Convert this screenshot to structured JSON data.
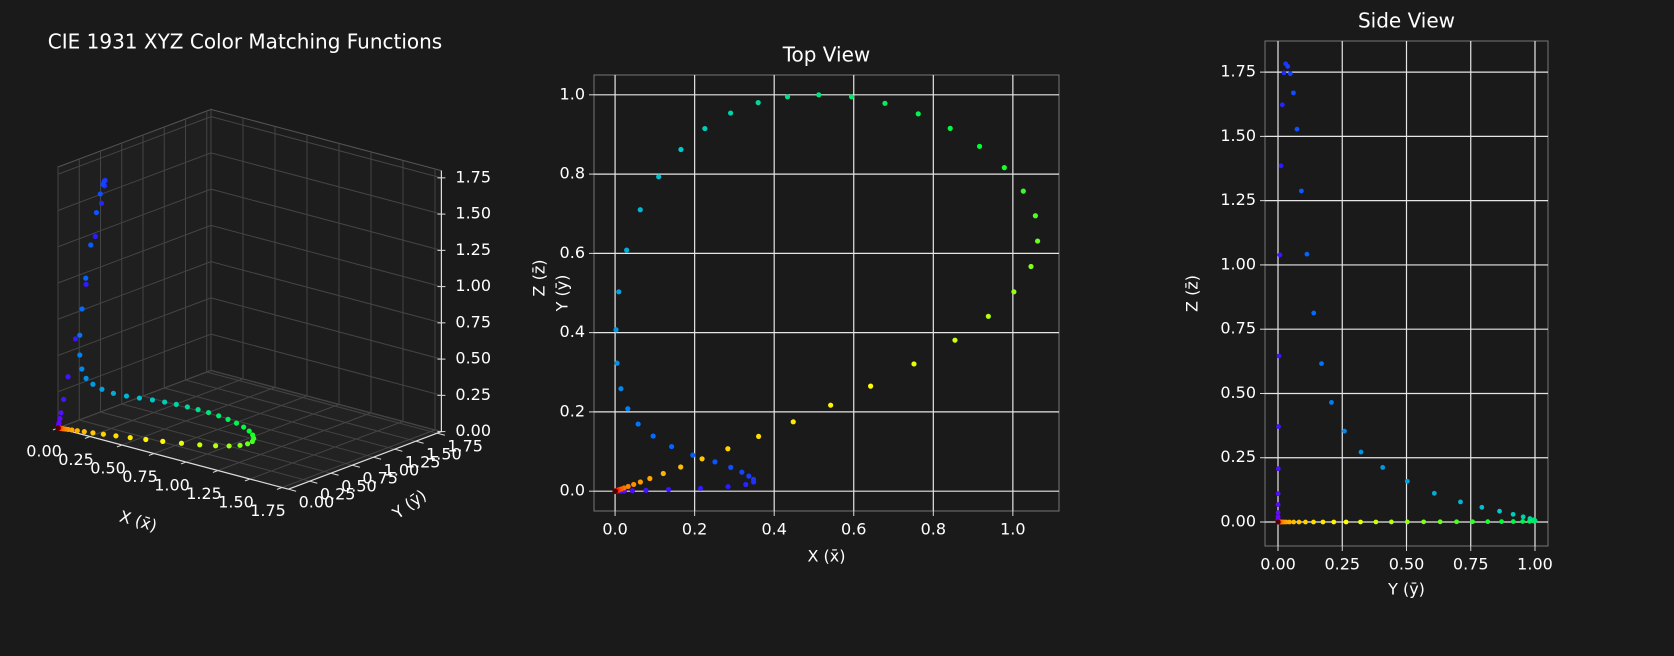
{
  "chart_data": [
    {
      "type": "scatter3d",
      "title": "CIE 1931 XYZ Color Matching Functions",
      "xlabel": "X (x̄)",
      "ylabel": "Y (ȳ)",
      "zlabel": "Z (z̄)",
      "xlim": [
        0,
        1.8
      ],
      "ylim": [
        0,
        1.8
      ],
      "zlim": [
        0,
        1.8
      ],
      "xticks": [
        {
          "value": 0,
          "label": "0.00"
        },
        0.25,
        {
          "value": 0.5,
          "label": "0.50"
        },
        0.75,
        {
          "value": 1,
          "label": "1.00"
        },
        1.25,
        {
          "value": 1.5,
          "label": "1.50"
        },
        1.75
      ],
      "yticks": [
        {
          "value": 0,
          "label": "0.00"
        },
        0.25,
        {
          "value": 0.5,
          "label": "0.50"
        },
        0.75,
        {
          "value": 1,
          "label": "1.00"
        },
        1.25,
        {
          "value": 1.5,
          "label": "1.50"
        },
        1.75
      ],
      "zticks": [
        {
          "value": 0,
          "label": "0.00"
        },
        0.25,
        {
          "value": 0.5,
          "label": "0.50"
        },
        0.75,
        {
          "value": 1,
          "label": "1.00"
        },
        1.25,
        {
          "value": 1.5,
          "label": "1.50"
        },
        1.75
      ],
      "colormap": [
        "#7a00ff",
        "#2a1cff",
        "#006cff",
        "#00c8c8",
        "#00ff30",
        "#ffff00",
        "#ff9000",
        "#ff0000",
        "#500000"
      ],
      "x": [
        0.001368,
        0.002236,
        0.004243,
        0.00765,
        0.01431,
        0.02319,
        0.04351,
        0.07763,
        0.13438,
        0.21477,
        0.2839,
        0.3285,
        0.34828,
        0.34806,
        0.3362,
        0.3187,
        0.2908,
        0.2511,
        0.19536,
        0.1421,
        0.09564,
        0.05795,
        0.03201,
        0.0147,
        0.0049,
        0.0024,
        0.0093,
        0.0291,
        0.06327,
        0.1096,
        0.1655,
        0.22575,
        0.2904,
        0.3597,
        0.43345,
        0.51205,
        0.5945,
        0.6784,
        0.7621,
        0.8425,
        0.9163,
        0.9786,
        1.0263,
        1.0567,
        1.0622,
        1.0456,
        1.0026,
        0.9384,
        0.85445,
        0.7514,
        0.6424,
        0.5419,
        0.4479,
        0.3608,
        0.2835,
        0.2187,
        0.1649,
        0.1212,
        0.0874,
        0.0636,
        0.04677,
        0.0329,
        0.0227,
        0.01584,
        0.011359,
        0.008111,
        0.00579,
        0.004109,
        0.002899,
        0.002049,
        0.00144,
        0.001,
        0.00069,
        0.000476,
        0.000332,
        0.000235,
        0.000166,
        0.000117,
        8.3e-05,
        5.9e-05,
        4.2e-05
      ],
      "y": [
        3.9e-05,
        6.4e-05,
        0.00012,
        0.000217,
        0.000396,
        0.00064,
        0.00121,
        0.00218,
        0.004,
        0.0073,
        0.0116,
        0.01684,
        0.023,
        0.0298,
        0.038,
        0.048,
        0.06,
        0.0739,
        0.09098,
        0.1126,
        0.13902,
        0.1693,
        0.20802,
        0.2586,
        0.323,
        0.4073,
        0.503,
        0.6082,
        0.71,
        0.7932,
        0.862,
        0.91485,
        0.954,
        0.9803,
        0.99495,
        1.0,
        0.995,
        0.9786,
        0.952,
        0.9154,
        0.87,
        0.8163,
        0.757,
        0.6949,
        0.631,
        0.5668,
        0.503,
        0.4412,
        0.381,
        0.321,
        0.265,
        0.217,
        0.175,
        0.1382,
        0.107,
        0.0816,
        0.061,
        0.04458,
        0.032,
        0.0232,
        0.017,
        0.01192,
        0.00821,
        0.005723,
        0.004102,
        0.002929,
        0.002091,
        0.001484,
        0.001047,
        0.00074,
        0.00052,
        0.000361,
        0.000249,
        0.000172,
        0.00012,
        8.5e-05,
        6e-05,
        4.2e-05,
        3e-05,
        2.1e-05,
        1.5e-05
      ],
      "z": [
        0.00645,
        0.01055,
        0.02005,
        0.03621,
        0.06785,
        0.1102,
        0.2074,
        0.3713,
        0.6456,
        1.03905,
        1.3856,
        1.62296,
        1.74706,
        1.7826,
        1.77211,
        1.7441,
        1.6692,
        1.5281,
        1.28764,
        1.0419,
        0.81295,
        0.6162,
        0.46518,
        0.3533,
        0.272,
        0.2123,
        0.1582,
        0.1117,
        0.07825,
        0.05725,
        0.04216,
        0.02984,
        0.0203,
        0.0134,
        0.00875,
        0.00575,
        0.0039,
        0.00275,
        0.0021,
        0.0018,
        0.00165,
        0.0014,
        0.0011,
        0.001,
        0.0008,
        0.0006,
        0.00034,
        0.00024,
        0.00019,
        0.0001,
        5e-05,
        3e-05,
        2e-05,
        1e-05,
        0,
        0,
        0,
        0,
        0,
        0,
        0,
        0,
        0,
        0,
        0,
        0,
        0,
        0,
        0,
        0,
        0,
        0,
        0,
        0,
        0,
        0,
        0,
        0,
        0,
        0,
        0
      ]
    },
    {
      "type": "scatter",
      "title": "Top View",
      "xlabel": "X (x̄)",
      "ylabel": "Y (ȳ)",
      "grid": true,
      "xlim": [
        -0.053,
        1.116
      ],
      "ylim": [
        -0.05,
        1.05
      ],
      "xticks": [
        {
          "value": 0,
          "label": "0.0"
        },
        0.2,
        0.4,
        0.6,
        0.8,
        {
          "value": 1,
          "label": "1.0"
        }
      ],
      "yticks": [
        {
          "value": 0,
          "label": "0.0"
        },
        0.2,
        0.4,
        0.6,
        0.8,
        {
          "value": 1,
          "label": "1.0"
        }
      ],
      "colormap": [
        "#7a00ff",
        "#2a1cff",
        "#006cff",
        "#00c8c8",
        "#00ff30",
        "#ffff00",
        "#ff9000",
        "#ff0000",
        "#500000"
      ],
      "x": [
        0.001368,
        0.002236,
        0.004243,
        0.00765,
        0.01431,
        0.02319,
        0.04351,
        0.07763,
        0.13438,
        0.21477,
        0.2839,
        0.3285,
        0.34828,
        0.34806,
        0.3362,
        0.3187,
        0.2908,
        0.2511,
        0.19536,
        0.1421,
        0.09564,
        0.05795,
        0.03201,
        0.0147,
        0.0049,
        0.0024,
        0.0093,
        0.0291,
        0.06327,
        0.1096,
        0.1655,
        0.22575,
        0.2904,
        0.3597,
        0.43345,
        0.51205,
        0.5945,
        0.6784,
        0.7621,
        0.8425,
        0.9163,
        0.9786,
        1.0263,
        1.0567,
        1.0622,
        1.0456,
        1.0026,
        0.9384,
        0.85445,
        0.7514,
        0.6424,
        0.5419,
        0.4479,
        0.3608,
        0.2835,
        0.2187,
        0.1649,
        0.1212,
        0.0874,
        0.0636,
        0.04677,
        0.0329,
        0.0227,
        0.01584,
        0.011359,
        0.008111,
        0.00579,
        0.004109,
        0.002899,
        0.002049,
        0.00144,
        0.001,
        0.00069,
        0.000476,
        0.000332,
        0.000235,
        0.000166,
        0.000117,
        8.3e-05,
        5.9e-05,
        4.2e-05
      ],
      "y": [
        3.9e-05,
        6.4e-05,
        0.00012,
        0.000217,
        0.000396,
        0.00064,
        0.00121,
        0.00218,
        0.004,
        0.0073,
        0.0116,
        0.01684,
        0.023,
        0.0298,
        0.038,
        0.048,
        0.06,
        0.0739,
        0.09098,
        0.1126,
        0.13902,
        0.1693,
        0.20802,
        0.2586,
        0.323,
        0.4073,
        0.503,
        0.6082,
        0.71,
        0.7932,
        0.862,
        0.91485,
        0.954,
        0.9803,
        0.99495,
        1.0,
        0.995,
        0.9786,
        0.952,
        0.9154,
        0.87,
        0.8163,
        0.757,
        0.6949,
        0.631,
        0.5668,
        0.503,
        0.4412,
        0.381,
        0.321,
        0.265,
        0.217,
        0.175,
        0.1382,
        0.107,
        0.0816,
        0.061,
        0.04458,
        0.032,
        0.0232,
        0.017,
        0.01192,
        0.00821,
        0.005723,
        0.004102,
        0.002929,
        0.002091,
        0.001484,
        0.001047,
        0.00074,
        0.00052,
        0.000361,
        0.000249,
        0.000172,
        0.00012,
        8.5e-05,
        6e-05,
        4.2e-05,
        3e-05,
        2.1e-05,
        1.5e-05
      ]
    },
    {
      "type": "scatter",
      "title": "Side View",
      "xlabel": "Y (ȳ)",
      "ylabel": "Z (z̄)",
      "grid": true,
      "xlim": [
        -0.0506,
        1.0506
      ],
      "ylim": [
        -0.0933,
        1.871
      ],
      "xticks": [
        {
          "value": 0,
          "label": "0.00"
        },
        0.25,
        {
          "value": 0.5,
          "label": "0.50"
        },
        0.75,
        {
          "value": 1,
          "label": "1.00"
        }
      ],
      "yticks": [
        {
          "value": 0,
          "label": "0.00"
        },
        0.25,
        {
          "value": 0.5,
          "label": "0.50"
        },
        0.75,
        {
          "value": 1,
          "label": "1.00"
        },
        1.25,
        {
          "value": 1.5,
          "label": "1.50"
        },
        1.75
      ],
      "colormap": [
        "#7a00ff",
        "#2a1cff",
        "#006cff",
        "#00c8c8",
        "#00ff30",
        "#ffff00",
        "#ff9000",
        "#ff0000",
        "#500000"
      ],
      "x": [
        3.9e-05,
        6.4e-05,
        0.00012,
        0.000217,
        0.000396,
        0.00064,
        0.00121,
        0.00218,
        0.004,
        0.0073,
        0.0116,
        0.01684,
        0.023,
        0.0298,
        0.038,
        0.048,
        0.06,
        0.0739,
        0.09098,
        0.1126,
        0.13902,
        0.1693,
        0.20802,
        0.2586,
        0.323,
        0.4073,
        0.503,
        0.6082,
        0.71,
        0.7932,
        0.862,
        0.91485,
        0.954,
        0.9803,
        0.99495,
        1.0,
        0.995,
        0.9786,
        0.952,
        0.9154,
        0.87,
        0.8163,
        0.757,
        0.6949,
        0.631,
        0.5668,
        0.503,
        0.4412,
        0.381,
        0.321,
        0.265,
        0.217,
        0.175,
        0.1382,
        0.107,
        0.0816,
        0.061,
        0.04458,
        0.032,
        0.0232,
        0.017,
        0.01192,
        0.00821,
        0.005723,
        0.004102,
        0.002929,
        0.002091,
        0.001484,
        0.001047,
        0.00074,
        0.00052,
        0.000361,
        0.000249,
        0.000172,
        0.00012,
        8.5e-05,
        6e-05,
        4.2e-05,
        3e-05,
        2.1e-05,
        1.5e-05
      ],
      "y": [
        0.00645,
        0.01055,
        0.02005,
        0.03621,
        0.06785,
        0.1102,
        0.2074,
        0.3713,
        0.6456,
        1.03905,
        1.3856,
        1.62296,
        1.74706,
        1.7826,
        1.77211,
        1.7441,
        1.6692,
        1.5281,
        1.28764,
        1.0419,
        0.81295,
        0.6162,
        0.46518,
        0.3533,
        0.272,
        0.2123,
        0.1582,
        0.1117,
        0.07825,
        0.05725,
        0.04216,
        0.02984,
        0.0203,
        0.0134,
        0.00875,
        0.00575,
        0.0039,
        0.00275,
        0.0021,
        0.0018,
        0.00165,
        0.0014,
        0.0011,
        0.001,
        0.0008,
        0.0006,
        0.00034,
        0.00024,
        0.00019,
        0.0001,
        5e-05,
        3e-05,
        2e-05,
        1e-05,
        0,
        0,
        0,
        0,
        0,
        0,
        0,
        0,
        0,
        0,
        0,
        0,
        0,
        0,
        0,
        0,
        0,
        0,
        0,
        0,
        0,
        0,
        0,
        0,
        0,
        0,
        0
      ]
    }
  ]
}
